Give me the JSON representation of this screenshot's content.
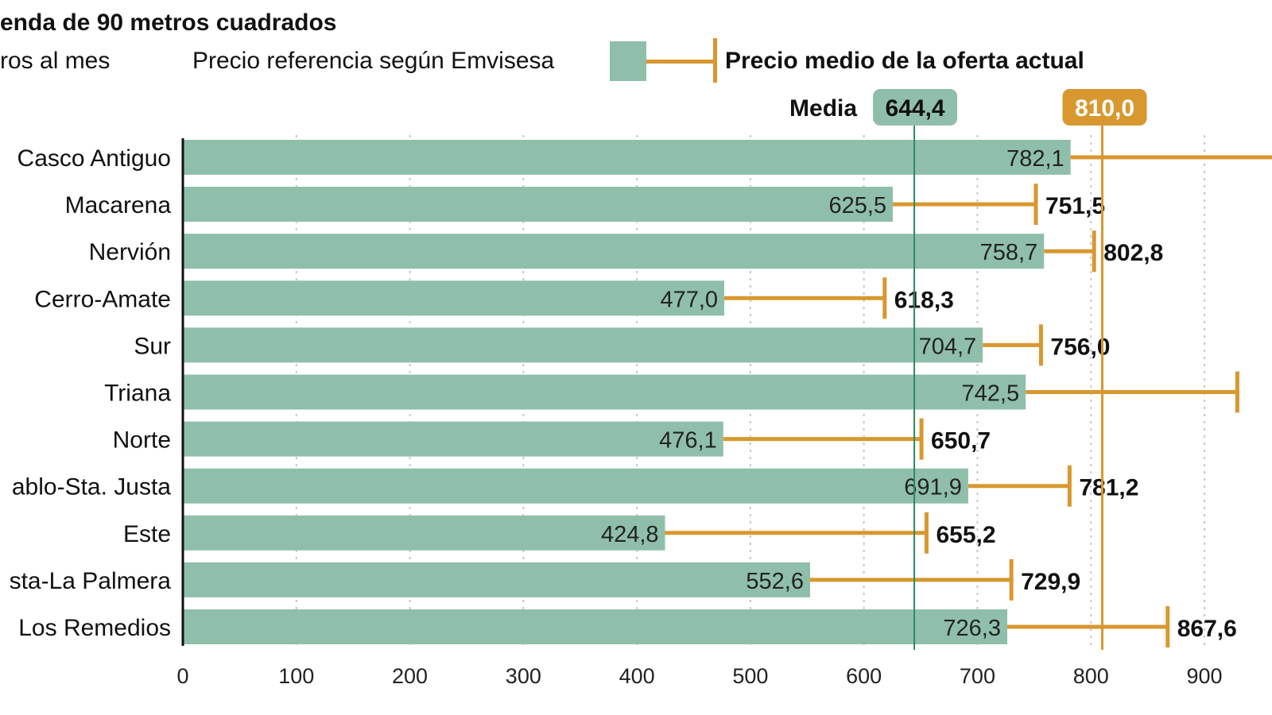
{
  "colors": {
    "bar": "#8fbfab",
    "oferta": "#d8982f",
    "media_line": "#2a8a66",
    "text": "#111111"
  },
  "chart_data": {
    "type": "bar",
    "orientation": "horizontal",
    "title": "enda de 90 metros cuadrados",
    "unit_label": "ros al mes",
    "legend": {
      "reference": "Precio referencia según Emvisesa",
      "oferta": "Precio medio de la oferta actual",
      "placement": "top"
    },
    "categories": [
      "Casco Antiguo",
      "Macarena",
      "Nervión",
      "Cerro-Amate",
      "Sur",
      "Triana",
      "Norte",
      "ablo-Sta. Justa",
      "Este",
      "sta-La Palmera",
      "Los Remedios"
    ],
    "series": [
      {
        "name": "Precio referencia según Emvisesa",
        "values": [
          782.1,
          625.5,
          758.7,
          477.0,
          704.7,
          742.5,
          476.1,
          691.9,
          424.8,
          552.6,
          726.3
        ],
        "labels": [
          "782,1",
          "625,5",
          "758,7",
          "477,0",
          "704,7",
          "742,5",
          "476,1",
          "691,9",
          "424,8",
          "552,6",
          "726,3"
        ]
      },
      {
        "name": "Precio medio de la oferta actual",
        "values": [
          null,
          751.5,
          802.8,
          618.3,
          756.0,
          929,
          650.7,
          781.2,
          655.2,
          729.9,
          867.6
        ],
        "labels": [
          "",
          "751,5",
          "802,8",
          "618,3",
          "756,0",
          "",
          "650,7",
          "781,2",
          "655,2",
          "729,9",
          "867,6"
        ]
      }
    ],
    "reference_lines": [
      {
        "label": "Media",
        "value": 644.4,
        "value_label": "644,4"
      },
      {
        "value": 810.0,
        "value_label": "810,0"
      }
    ],
    "xlim": [
      0,
      937
    ],
    "xticks": [
      0,
      100,
      200,
      300,
      400,
      500,
      600,
      700,
      800,
      900
    ],
    "grid": "vertical dotted"
  }
}
